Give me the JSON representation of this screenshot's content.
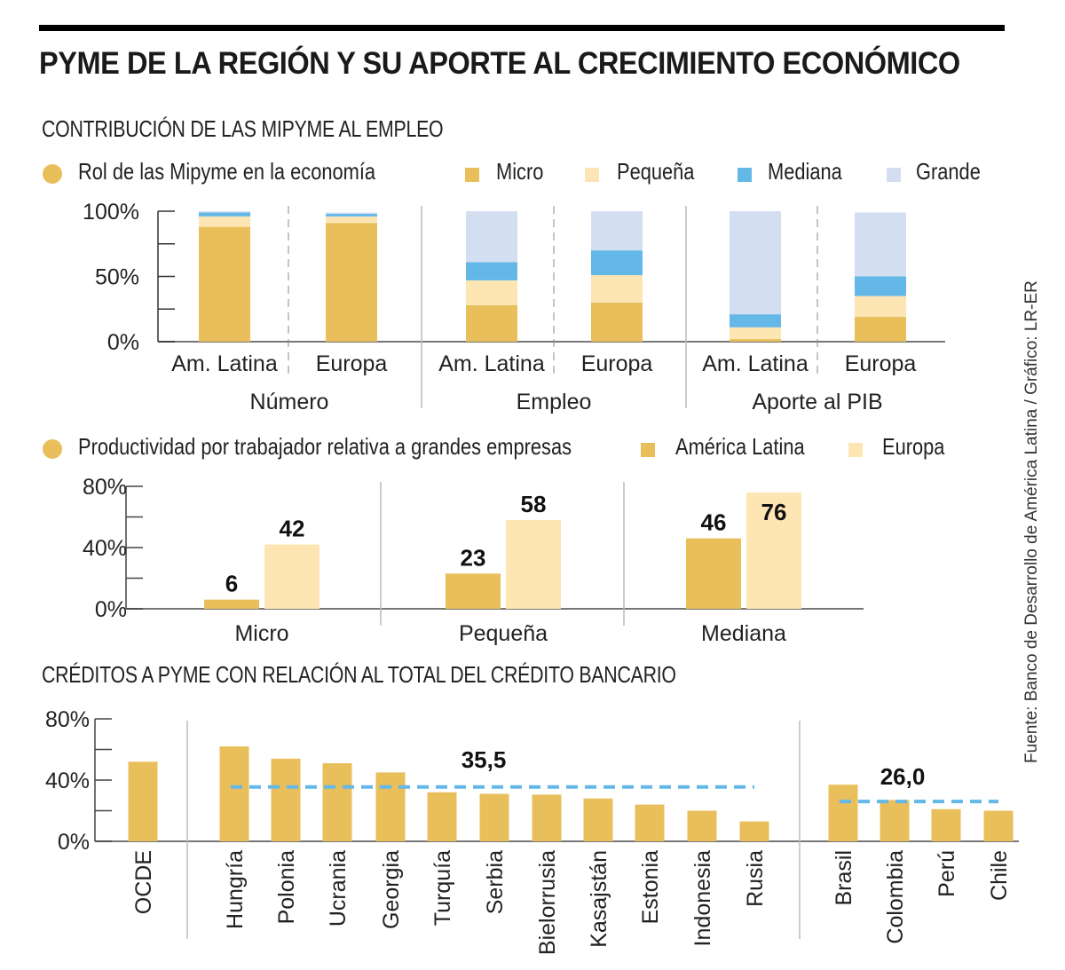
{
  "title": "PYME DE LA REGIÓN Y SU APORTE AL CRECIMIENTO ECONÓMICO",
  "source": "Fuente: Banco de Desarrollo de América Latina / Gráfico: LR-ER",
  "colors": {
    "micro": "#E8BF5A",
    "pequena": "#FDE6B4",
    "mediana": "#63B8E8",
    "grande": "#D3DEF1",
    "america_latina": "#E8BF5A",
    "europa": "#FDE6B4",
    "avg_line": "#63B8E8"
  },
  "sections": {
    "employment_heading": "CONTRIBUCIÓN DE LAS MIPYME AL EMPLEO",
    "credit_heading": "CRÉDITOS A PYME CON RELACIÓN AL TOTAL DEL CRÉDITO BANCARIO"
  },
  "chart_data": [
    {
      "type": "bar",
      "stacked": true,
      "title": "Rol de las Mipyme en la economía",
      "categories": [
        "Am. Latina",
        "Europa",
        "Am. Latina",
        "Europa",
        "Am. Latina",
        "Europa"
      ],
      "groups": [
        {
          "label": "Número",
          "categories": [
            0,
            1
          ]
        },
        {
          "label": "Empleo",
          "categories": [
            2,
            3
          ]
        },
        {
          "label": "Aporte al PIB",
          "categories": [
            4,
            5
          ]
        }
      ],
      "series": [
        {
          "name": "Micro",
          "values": [
            88,
            91,
            28,
            30,
            2,
            19
          ]
        },
        {
          "name": "Pequeña",
          "values": [
            8,
            5,
            19,
            21,
            9,
            16
          ]
        },
        {
          "name": "Mediana",
          "values": [
            3,
            2,
            14,
            19,
            10,
            15
          ]
        },
        {
          "name": "Grande",
          "values": [
            1,
            1,
            39,
            30,
            79,
            49
          ]
        }
      ],
      "yticks": [
        "0%",
        "50%",
        "100%"
      ],
      "ylim": [
        0,
        100
      ],
      "legend": "top"
    },
    {
      "type": "bar",
      "title": "Productividad por trabajador relativa a grandes empresas",
      "categories": [
        "Micro",
        "Pequeña",
        "Mediana"
      ],
      "series": [
        {
          "name": "América Latina",
          "values": [
            6,
            23,
            46
          ]
        },
        {
          "name": "Europa",
          "values": [
            42,
            58,
            76
          ]
        }
      ],
      "data_labels": [
        [
          "6",
          "23",
          "46"
        ],
        [
          "42",
          "58",
          "76"
        ]
      ],
      "yticks": [
        "0%",
        "40%",
        "80%"
      ],
      "ylim": [
        0,
        80
      ],
      "legend": "top"
    },
    {
      "type": "bar",
      "title": "CRÉDITOS A PYME CON RELACIÓN AL TOTAL DEL CRÉDITO BANCARIO",
      "groups": [
        {
          "categories": [
            "OCDE"
          ],
          "values": [
            52
          ]
        },
        {
          "categories": [
            "Hungría",
            "Polonia",
            "Ucrania",
            "Georgia",
            "Turquía",
            "Serbia",
            "Bielorrusia",
            "Kasajstán",
            "Estonia",
            "Indonesia",
            "Rusia"
          ],
          "values": [
            62,
            54,
            51,
            45,
            32,
            31,
            30.5,
            28,
            24,
            20,
            13
          ],
          "average": 35.5,
          "average_label": "35,5"
        },
        {
          "categories": [
            "Brasil",
            "Colombia",
            "Perú",
            "Chile"
          ],
          "values": [
            37,
            27,
            21,
            20
          ],
          "average": 26.0,
          "average_label": "26,0"
        }
      ],
      "yticks": [
        "0%",
        "40%",
        "80%"
      ],
      "ylim": [
        0,
        80
      ]
    }
  ]
}
